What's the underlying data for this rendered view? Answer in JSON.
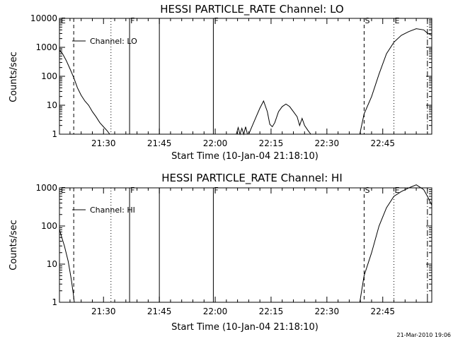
{
  "chart_data": [
    {
      "type": "line",
      "title": "HESSI PARTICLE_RATE Channel: LO",
      "xlabel": "Start Time (10-Jan-04 21:18:10)",
      "ylabel": "Counts/sec",
      "yscale": "log",
      "ylim": [
        1,
        10000
      ],
      "xlim": [
        "21:18:10",
        "22:58:10"
      ],
      "x_ticks": [
        "21:30",
        "21:45",
        "22:00",
        "22:15",
        "22:30",
        "22:45"
      ],
      "y_ticks": [
        "1",
        "10",
        "100",
        "1000",
        "10000"
      ],
      "legend": {
        "label": "Channel: LO",
        "placement": "top-left"
      },
      "markers": [
        {
          "label": "E",
          "time": "21:18:20",
          "style": "none"
        },
        {
          "label": "",
          "time": "21:22:00",
          "style": "dashed"
        },
        {
          "label": "",
          "time": "21:32:00",
          "style": "dotted"
        },
        {
          "label": "F",
          "time": "21:37:00",
          "style": "solid"
        },
        {
          "label": "",
          "time": "21:45:00",
          "style": "solid"
        },
        {
          "label": "F",
          "time": "21:59:30",
          "style": "solid"
        },
        {
          "label": "S",
          "time": "22:40:00",
          "style": "dashed"
        },
        {
          "label": "E",
          "time": "22:48:00",
          "style": "dotted"
        },
        {
          "label": "",
          "time": "22:57:00",
          "style": "dashdot"
        }
      ],
      "series": [
        {
          "segments": [
            [
              [
                "21:18:10",
                800
              ],
              [
                "21:19:00",
                600
              ],
              [
                "21:20:00",
                350
              ],
              [
                "21:21:00",
                180
              ],
              [
                "21:22:00",
                90
              ],
              [
                "21:23:00",
                40
              ],
              [
                "21:24:00",
                22
              ],
              [
                "21:25:00",
                14
              ],
              [
                "21:26:00",
                10
              ],
              [
                "21:27:00",
                6
              ],
              [
                "21:28:00",
                4
              ],
              [
                "21:29:00",
                2.5
              ],
              [
                "21:30:00",
                1.8
              ],
              [
                "21:31:00",
                1.3
              ],
              [
                "21:31:40",
                1
              ]
            ],
            [
              [
                "22:05:40",
                1
              ],
              [
                "22:06:10",
                1.7
              ],
              [
                "22:06:40",
                1
              ],
              [
                "22:07:10",
                1.6
              ],
              [
                "22:07:40",
                1
              ],
              [
                "22:08:10",
                1.8
              ],
              [
                "22:08:40",
                1
              ],
              [
                "22:09:00",
                1
              ],
              [
                "22:10:00",
                2
              ],
              [
                "22:11:00",
                4
              ],
              [
                "22:12:00",
                8
              ],
              [
                "22:13:00",
                14
              ],
              [
                "22:14:00",
                6
              ],
              [
                "22:14:40",
                2.2
              ],
              [
                "22:15:20",
                1.8
              ],
              [
                "22:16:00",
                2.5
              ],
              [
                "22:17:00",
                6
              ],
              [
                "22:18:00",
                9
              ],
              [
                "22:19:00",
                11
              ],
              [
                "22:20:00",
                9
              ],
              [
                "22:21:00",
                6
              ],
              [
                "22:22:00",
                4
              ],
              [
                "22:22:40",
                2
              ],
              [
                "22:23:20",
                3.5
              ],
              [
                "22:24:00",
                2
              ],
              [
                "22:25:00",
                1.3
              ],
              [
                "22:25:40",
                1
              ]
            ],
            [
              [
                "22:38:50",
                1
              ],
              [
                "22:40:00",
                5
              ],
              [
                "22:42:00",
                20
              ],
              [
                "22:44:00",
                120
              ],
              [
                "22:46:00",
                600
              ],
              [
                "22:48:00",
                1500
              ],
              [
                "22:50:00",
                2600
              ],
              [
                "22:52:00",
                3500
              ],
              [
                "22:54:00",
                4400
              ],
              [
                "22:56:00",
                4000
              ],
              [
                "22:57:00",
                3100
              ],
              [
                "22:58:10",
                2600
              ]
            ]
          ]
        }
      ]
    },
    {
      "type": "line",
      "title": "HESSI PARTICLE_RATE Channel: HI",
      "xlabel": "Start Time (10-Jan-04 21:18:10)",
      "ylabel": "Counts/sec",
      "yscale": "log",
      "ylim": [
        1,
        1000
      ],
      "xlim": [
        "21:18:10",
        "22:58:10"
      ],
      "x_ticks": [
        "21:30",
        "21:45",
        "22:00",
        "22:15",
        "22:30",
        "22:45"
      ],
      "y_ticks": [
        "1",
        "10",
        "100",
        "1000"
      ],
      "legend": {
        "label": "Channel: HI",
        "placement": "top-left"
      },
      "markers": [
        {
          "label": "E",
          "time": "21:18:20",
          "style": "none"
        },
        {
          "label": "",
          "time": "21:22:00",
          "style": "dashed"
        },
        {
          "label": "",
          "time": "21:32:00",
          "style": "dotted"
        },
        {
          "label": "F",
          "time": "21:37:00",
          "style": "solid"
        },
        {
          "label": "",
          "time": "21:45:00",
          "style": "solid"
        },
        {
          "label": "F",
          "time": "21:59:30",
          "style": "solid"
        },
        {
          "label": "S",
          "time": "22:40:00",
          "style": "dashed"
        },
        {
          "label": "E",
          "time": "22:48:00",
          "style": "dotted"
        },
        {
          "label": "",
          "time": "22:57:00",
          "style": "dashdot"
        }
      ],
      "series": [
        {
          "segments": [
            [
              [
                "21:18:10",
                80
              ],
              [
                "21:18:40",
                55
              ],
              [
                "21:19:30",
                30
              ],
              [
                "21:20:30",
                12
              ],
              [
                "21:21:20",
                4
              ],
              [
                "21:21:50",
                1.8
              ],
              [
                "21:22:10",
                1
              ]
            ],
            [
              [
                "22:38:50",
                1
              ],
              [
                "22:40:00",
                5
              ],
              [
                "22:42:00",
                20
              ],
              [
                "22:44:00",
                100
              ],
              [
                "22:46:00",
                300
              ],
              [
                "22:48:00",
                600
              ],
              [
                "22:50:00",
                800
              ],
              [
                "22:52:00",
                1000
              ],
              [
                "22:54:00",
                1200
              ],
              [
                "22:56:00",
                900
              ],
              [
                "22:57:00",
                600
              ],
              [
                "22:58:10",
                350
              ]
            ]
          ]
        }
      ]
    }
  ],
  "footer": {
    "timestamp": "21-Mar-2010 19:06"
  }
}
